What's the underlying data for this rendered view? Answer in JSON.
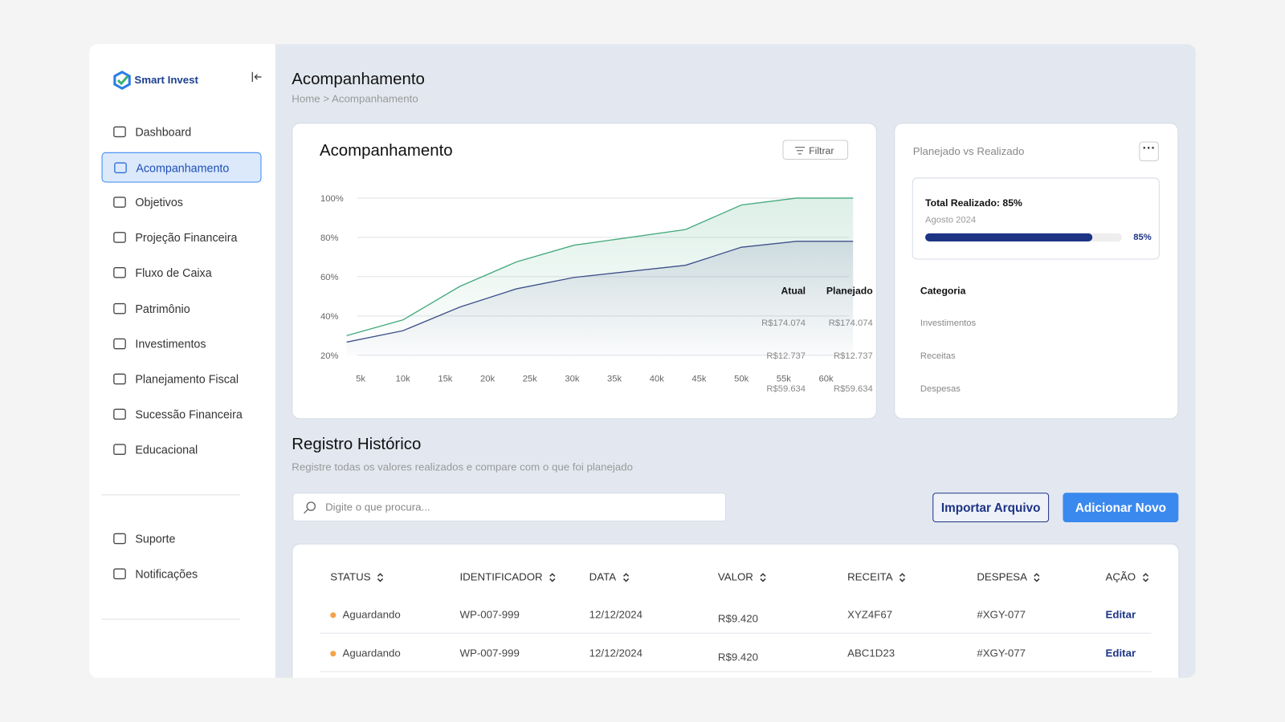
{
  "brand": "Smart Invest",
  "nav": [
    "Dashboard",
    "Acompanhamento",
    "Objetivos",
    "Projeção Financeira",
    "Fluxo de Caixa",
    "Patrimônio",
    "Investimentos",
    "Planejamento Fiscal",
    "Sucessão Financeira",
    "Educacional"
  ],
  "support": [
    "Suporte",
    "Notificações"
  ],
  "header": {
    "title": "Acompanhamento",
    "breadcrumb": "Home > Acompanhamento"
  },
  "chart_card": {
    "title": "Acompanhamento",
    "filter": "Filtrar"
  },
  "chart_data": {
    "type": "line",
    "x": [
      3350,
      10000,
      16700,
      23400,
      30200,
      43400,
      50000,
      56500,
      63200
    ],
    "series": [
      {
        "color": "#43a97c",
        "values": [
          30,
          38,
          55,
          67.5,
          76,
          84,
          96.5,
          100,
          100
        ]
      },
      {
        "color": "#3f5189",
        "values": [
          26.7,
          32.5,
          44.5,
          53.8,
          59.6,
          65.8,
          75,
          78,
          78
        ]
      }
    ],
    "xlim": [
      3350,
      63200
    ],
    "ylim": [
      20,
      100
    ],
    "xticks": [
      {
        "value": 5000,
        "label": "5k"
      },
      {
        "value": 10000,
        "label": "10k"
      },
      {
        "value": 15000,
        "label": "15k"
      },
      {
        "value": 20000,
        "label": "20k"
      },
      {
        "value": 25000,
        "label": "25k"
      },
      {
        "value": 30000,
        "label": "30k"
      },
      {
        "value": 35000,
        "label": "35k"
      },
      {
        "value": 40000,
        "label": "40k"
      },
      {
        "value": 45000,
        "label": "45k"
      },
      {
        "value": 50000,
        "label": "50k"
      },
      {
        "value": 55000,
        "label": "55k"
      },
      {
        "value": 60000,
        "label": "60k"
      }
    ],
    "yticks": [
      {
        "value": 20,
        "label": "20%"
      },
      {
        "value": 40,
        "label": "40%"
      },
      {
        "value": 60,
        "label": "60%"
      },
      {
        "value": 80,
        "label": "80%"
      },
      {
        "value": 100,
        "label": "100%"
      }
    ],
    "grid": true
  },
  "summary": {
    "title": "Planejado vs Realizado",
    "progress": {
      "label": "Total Realizado: 85%",
      "period": "Agosto 2024",
      "value": 85,
      "value_label": "85%"
    },
    "columns": [
      "Categoria",
      "Atual",
      "Planejado"
    ],
    "rows": [
      [
        "Investimentos",
        "R$174.074",
        "R$174.074"
      ],
      [
        "Receitas",
        "R$12.737",
        "R$12.737"
      ],
      [
        "Despesas",
        "R$59.634",
        "R$59.634"
      ]
    ]
  },
  "history": {
    "title": "Registro Histórico",
    "subtitle": "Registre todas os valores realizados e compare com o que foi planejado",
    "search": "Digite o que procura...",
    "import": "Importar Arquivo",
    "add": "Adicionar Novo",
    "columns": [
      "STATUS",
      "IDENTIFICADOR",
      "DATA",
      "VALOR",
      "RECEITA",
      "DESPESA",
      "AÇÃO"
    ],
    "rows": [
      [
        "Aguardando",
        "WP-007-999",
        "12/12/2024",
        "R$9.420",
        "XYZ4F67",
        "#XGY-077",
        "Editar"
      ],
      [
        "Aguardando",
        "WP-007-999",
        "12/12/2024",
        "R$9.420",
        "ABC1D23",
        "#XGY-077",
        "Editar"
      ]
    ]
  }
}
